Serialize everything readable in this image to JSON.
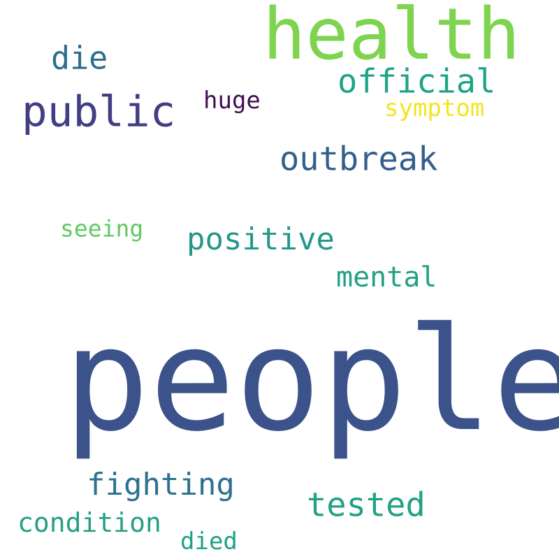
{
  "words": {
    "health": {
      "text": "health",
      "color": "#7ed34f"
    },
    "die": {
      "text": "die",
      "color": "#2a6f8e"
    },
    "official": {
      "text": "official",
      "color": "#20a386"
    },
    "huge": {
      "text": "huge",
      "color": "#440d54"
    },
    "public": {
      "text": "public",
      "color": "#433d83"
    },
    "symptom": {
      "text": "symptom",
      "color": "#f3e51e"
    },
    "outbreak": {
      "text": "outbreak",
      "color": "#345f8d"
    },
    "seeing": {
      "text": "seeing",
      "color": "#5ec962"
    },
    "positive": {
      "text": "positive",
      "color": "#23988a"
    },
    "mental": {
      "text": "mental",
      "color": "#22a184"
    },
    "people": {
      "text": "people",
      "color": "#3b528b"
    },
    "fighting": {
      "text": "fighting",
      "color": "#2c728e"
    },
    "tested": {
      "text": "tested",
      "color": "#21a184"
    },
    "condition": {
      "text": "condition",
      "color": "#25a085"
    },
    "died": {
      "text": "died",
      "color": "#1fa186"
    }
  }
}
